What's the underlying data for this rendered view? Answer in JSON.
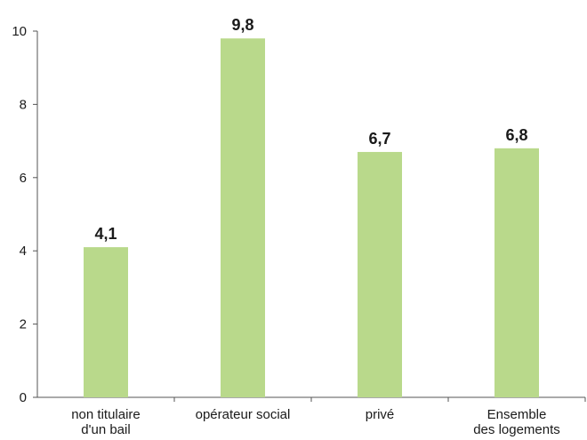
{
  "chart_data": {
    "type": "bar",
    "categories": [
      [
        "non titulaire",
        "d'un bail"
      ],
      [
        "opérateur social"
      ],
      [
        "privé"
      ],
      [
        "Ensemble",
        "des logements"
      ]
    ],
    "values": [
      4.1,
      9.8,
      6.7,
      6.8
    ],
    "value_labels": [
      "4,1",
      "9,8",
      "6,7",
      "6,8"
    ],
    "ylim": [
      0,
      10
    ],
    "yticks": [
      0,
      2,
      4,
      6,
      8,
      10
    ],
    "ytick_labels": [
      "0",
      "2",
      "4",
      "6",
      "8",
      "10"
    ],
    "grid": false,
    "bar_color": "#b9d98b",
    "axis_color": "#555555"
  }
}
